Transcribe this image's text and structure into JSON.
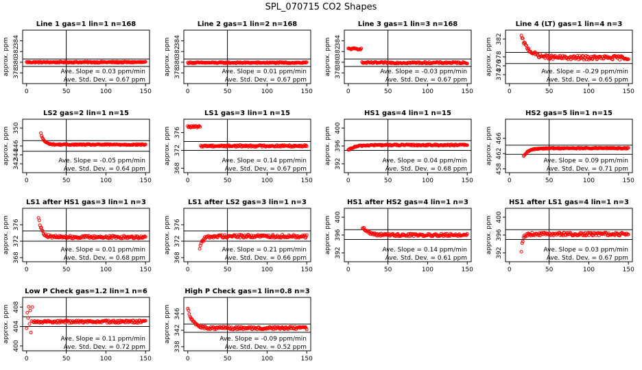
{
  "figure": {
    "title": "SPL_070715  CO2 Shapes"
  },
  "chart_data": [
    {
      "type": "scatter",
      "title": "Line 1 gas=1 lin=1 n=168",
      "ylabel": "approx. ppm",
      "xlim": [
        -5,
        155
      ],
      "xticks": [
        0,
        50,
        100,
        150
      ],
      "ylim": [
        376,
        386
      ],
      "yticks": [
        378,
        380,
        382,
        384
      ],
      "hlines": [
        379.2,
        380.6
      ],
      "vline": 50,
      "annotations": [
        "Ave. Slope = 0.03 ppm/min",
        "Ave. Std. Dev. = 0.67 ppm"
      ],
      "series": [
        {
          "shape": "flat",
          "x_range": [
            0,
            150
          ],
          "start": 380.0,
          "end": 380.0,
          "noise": 0.12
        }
      ]
    },
    {
      "type": "scatter",
      "title": "Line 2 gas=1 lin=2 n=168",
      "ylabel": "approx. ppm",
      "xlim": [
        -5,
        155
      ],
      "xticks": [
        0,
        50,
        100,
        150
      ],
      "ylim": [
        376,
        386
      ],
      "yticks": [
        378,
        380,
        382,
        384
      ],
      "hlines": [
        379.2,
        380.6
      ],
      "vline": 50,
      "annotations": [
        "Ave. Slope = 0.01 ppm/min",
        "Ave. Std. Dev. = 0.67 ppm"
      ],
      "series": [
        {
          "shape": "flat",
          "x_range": [
            0,
            150
          ],
          "start": 379.9,
          "end": 379.9,
          "noise": 0.12
        }
      ]
    },
    {
      "type": "scatter",
      "title": "Line 3 gas=1 lin=3 n=168",
      "ylabel": "approx. ppm",
      "xlim": [
        -5,
        155
      ],
      "xticks": [
        0,
        50,
        100,
        150
      ],
      "ylim": [
        376,
        386
      ],
      "yticks": [
        378,
        380,
        382,
        384
      ],
      "hlines": [
        379.2,
        380.6
      ],
      "vline": 50,
      "annotations": [
        "Ave. Slope = -0.03 ppm/min",
        "Ave. Std. Dev. = 0.67 ppm"
      ],
      "series": [
        {
          "shape": "step",
          "x_range": [
            0,
            150
          ],
          "start": 382.5,
          "end": 379.9,
          "drop_at": 17,
          "noise": 0.15
        }
      ]
    },
    {
      "type": "scatter",
      "title": "Line 4 (LT) gas=1 lin=4 n=3",
      "ylabel": "approx. ppm",
      "xlim": [
        -5,
        155
      ],
      "xticks": [
        0,
        50,
        100,
        150
      ],
      "ylim": [
        372,
        384
      ],
      "yticks": [
        374,
        376,
        378,
        382
      ],
      "hlines": [
        376.5,
        379.0
      ],
      "vline": 50,
      "annotations": [
        "Ave. Slope = -0.29 ppm/min",
        "Ave. Std. Dev. = 0.65 ppm"
      ],
      "series": [
        {
          "shape": "decay",
          "x_range": [
            15,
            150
          ],
          "start": 382.5,
          "end": 377.8,
          "tau": 10,
          "noise": 0.45
        }
      ]
    },
    {
      "type": "scatter",
      "title": "LS2 gas=2 lin=1 n=15",
      "ylabel": "approx. ppm",
      "xlim": [
        -5,
        155
      ],
      "xticks": [
        0,
        50,
        100,
        150
      ],
      "ylim": [
        340,
        352
      ],
      "yticks": [
        342,
        344,
        346,
        350
      ],
      "hlines": [
        344.8,
        347.2
      ],
      "vline": 50,
      "annotations": [
        "Ave. Slope = -0.05 ppm/min",
        "Ave. Std. Dev. = 0.64 ppm"
      ],
      "series": [
        {
          "shape": "decay",
          "x_range": [
            18,
            150
          ],
          "start": 348.8,
          "end": 346.3,
          "tau": 4,
          "noise": 0.12
        }
      ]
    },
    {
      "type": "scatter",
      "title": "LS1 gas=3 lin=1 n=15",
      "ylabel": "approx. ppm",
      "xlim": [
        -5,
        155
      ],
      "xticks": [
        0,
        50,
        100,
        150
      ],
      "ylim": [
        367,
        379
      ],
      "yticks": [
        368,
        372,
        376
      ],
      "hlines": [
        372.0,
        374.0
      ],
      "vline": 50,
      "annotations": [
        "Ave. Slope = 0.14 ppm/min",
        "Ave. Std. Dev. = 0.67 ppm"
      ],
      "series": [
        {
          "shape": "step",
          "x_range": [
            0,
            150
          ],
          "start": 377.3,
          "end": 373.0,
          "drop_at": 16,
          "noise": 0.2
        }
      ]
    },
    {
      "type": "scatter",
      "title": "HS1 gas=4 lin=1 n=15",
      "ylabel": "approx. ppm",
      "xlim": [
        -5,
        155
      ],
      "xticks": [
        0,
        50,
        100,
        150
      ],
      "ylim": [
        390,
        402
      ],
      "yticks": [
        392,
        396,
        400
      ],
      "hlines": [
        395.0,
        397.2
      ],
      "vline": 50,
      "annotations": [
        "Ave. Slope = 0.04 ppm/min",
        "Ave. Std. Dev. = 0.68 ppm"
      ],
      "series": [
        {
          "shape": "rise",
          "x_range": [
            0,
            150
          ],
          "start": 395.0,
          "end": 396.2,
          "tau": 8,
          "noise": 0.15
        }
      ]
    },
    {
      "type": "scatter",
      "title": "HS2 gas=5 lin=1 n=15",
      "ylabel": "approx. ppm",
      "xlim": [
        -5,
        155
      ],
      "xticks": [
        0,
        50,
        100,
        150
      ],
      "ylim": [
        457,
        471
      ],
      "yticks": [
        458,
        462,
        466
      ],
      "hlines": [
        461.8,
        464.2
      ],
      "vline": 50,
      "annotations": [
        "Ave. Slope = 0.09 ppm/min",
        "Ave. Std. Dev. = 0.71 ppm"
      ],
      "series": [
        {
          "shape": "rise",
          "x_range": [
            18,
            150
          ],
          "start": 461.2,
          "end": 463.4,
          "tau": 6,
          "noise": 0.15
        }
      ]
    },
    {
      "type": "scatter",
      "title": "LS1 after HS1 gas=3 lin=1 n=3",
      "ylabel": "approx. ppm",
      "xlim": [
        -5,
        155
      ],
      "xticks": [
        0,
        50,
        100,
        150
      ],
      "ylim": [
        367,
        380
      ],
      "yticks": [
        368,
        372,
        376
      ],
      "hlines": [
        372.0,
        374.5
      ],
      "vline": 50,
      "annotations": [
        "Ave. Slope = 0.01 ppm/min",
        "Ave. Std. Dev. = 0.68 ppm"
      ],
      "series": [
        {
          "shape": "decay",
          "x_range": [
            15,
            150
          ],
          "start": 378.0,
          "end": 373.0,
          "tau": 4,
          "noise": 0.35
        }
      ]
    },
    {
      "type": "scatter",
      "title": "LS1 after LS2 gas=3 lin=1 n=3",
      "ylabel": "approx. ppm",
      "xlim": [
        -5,
        155
      ],
      "xticks": [
        0,
        50,
        100,
        150
      ],
      "ylim": [
        367,
        380
      ],
      "yticks": [
        368,
        372,
        376
      ],
      "hlines": [
        372.0,
        374.5
      ],
      "vline": 50,
      "annotations": [
        "Ave. Slope = 0.21 ppm/min",
        "Ave. Std. Dev. = 0.66 ppm"
      ],
      "series": [
        {
          "shape": "rise",
          "x_range": [
            15,
            150
          ],
          "start": 370.5,
          "end": 373.2,
          "tau": 4,
          "noise": 0.4
        }
      ]
    },
    {
      "type": "scatter",
      "title": "HS1 after HS2 gas=4 lin=1 n=3",
      "ylabel": "approx. ppm",
      "xlim": [
        -5,
        155
      ],
      "xticks": [
        0,
        50,
        100,
        150
      ],
      "ylim": [
        390,
        402
      ],
      "yticks": [
        392,
        396,
        400
      ],
      "hlines": [
        395.0,
        397.2
      ],
      "vline": 50,
      "annotations": [
        "Ave. Slope = 0.14 ppm/min",
        "Ave. Std. Dev. = 0.61 ppm"
      ],
      "series": [
        {
          "shape": "decay",
          "x_range": [
            18,
            150
          ],
          "start": 397.8,
          "end": 396.0,
          "tau": 7,
          "noise": 0.3
        }
      ]
    },
    {
      "type": "scatter",
      "title": "HS1 after LS1 gas=4 lin=1 n=3",
      "ylabel": "approx. ppm",
      "xlim": [
        -5,
        155
      ],
      "xticks": [
        0,
        50,
        100,
        150
      ],
      "ylim": [
        390,
        402
      ],
      "yticks": [
        392,
        396,
        400
      ],
      "hlines": [
        395.0,
        397.2
      ],
      "vline": 50,
      "annotations": [
        "Ave. Slope = 0.03 ppm/min",
        "Ave. Std. Dev. = 0.67 ppm"
      ],
      "series": [
        {
          "shape": "rise",
          "x_range": [
            15,
            150
          ],
          "start": 392.5,
          "end": 396.2,
          "tau": 2,
          "noise": 0.35
        }
      ]
    },
    {
      "type": "scatter",
      "title": "Low P Check gas=1.2 lin=1 n=6",
      "ylabel": "approx. ppm",
      "xlim": [
        -5,
        155
      ],
      "xticks": [
        0,
        50,
        100,
        150
      ],
      "ylim": [
        399,
        410
      ],
      "yticks": [
        400,
        404,
        408
      ],
      "hlines": [
        404.0,
        406.0
      ],
      "vline": 50,
      "annotations": [
        "Ave. Slope = 0.11 ppm/min",
        "Ave. Std. Dev. = 0.72 ppm"
      ],
      "series": [
        {
          "shape": "scatterstart",
          "x_range": [
            0,
            150
          ],
          "start": 405.5,
          "end": 405.0,
          "tau": 3,
          "noise": 0.25
        }
      ]
    },
    {
      "type": "scatter",
      "title": "High P Check gas=1 lin=0.8 n=3",
      "ylabel": "approx. ppm",
      "xlim": [
        -5,
        155
      ],
      "xticks": [
        0,
        50,
        100,
        150
      ],
      "ylim": [
        337,
        350
      ],
      "yticks": [
        338,
        342,
        346
      ],
      "hlines": [
        341.5,
        343.5
      ],
      "vline": 50,
      "annotations": [
        "Ave. Slope = -0.09 ppm/min",
        "Ave. Std. Dev. = 0.52 ppm"
      ],
      "series": [
        {
          "shape": "decay",
          "x_range": [
            0,
            150
          ],
          "start": 347.5,
          "end": 342.5,
          "tau": 6,
          "noise": 0.35
        }
      ]
    }
  ]
}
